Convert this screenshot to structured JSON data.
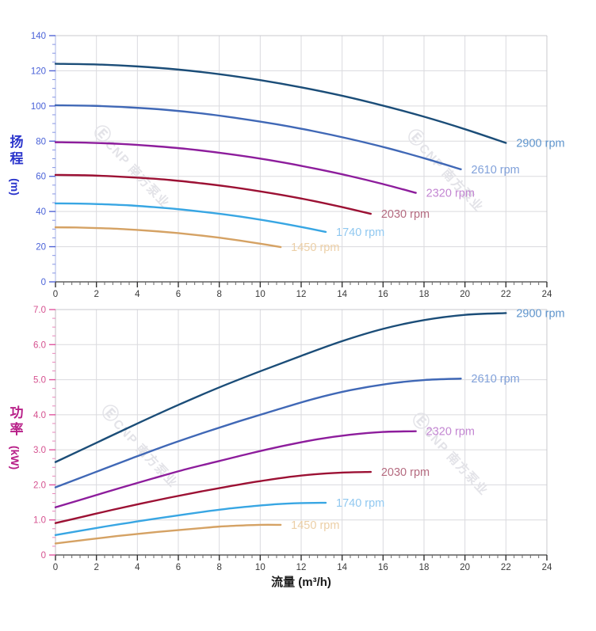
{
  "page": {
    "background": "#ffffff"
  },
  "watermark": {
    "logo": "Ⓔ",
    "text": "CNP 南方泵业",
    "color": "#e3e3e8"
  },
  "chart_data": [
    {
      "type": "line",
      "title": "",
      "ylabel_cjk": "扬程",
      "ylabel_unit": "(m)",
      "ylabel_color": "#2b35cc",
      "xlabel": "",
      "xlim": [
        0,
        24
      ],
      "ylim": [
        0,
        140
      ],
      "x_major": 2,
      "x_minor": 0.4,
      "y_major": 20,
      "y_minor": 5,
      "grid": true,
      "legend_position": "end-of-curve",
      "x_ticks": [
        [
          0,
          "0"
        ],
        [
          2,
          "2"
        ],
        [
          4,
          "4"
        ],
        [
          6,
          "6"
        ],
        [
          8,
          "8"
        ],
        [
          10,
          "10"
        ],
        [
          12,
          "12"
        ],
        [
          14,
          "14"
        ],
        [
          16,
          "16"
        ],
        [
          18,
          "18"
        ],
        [
          20,
          "20"
        ],
        [
          22,
          "22"
        ],
        [
          24,
          "24"
        ]
      ],
      "y_ticks": [
        [
          0,
          "0"
        ],
        [
          20,
          "20"
        ],
        [
          40,
          "40"
        ],
        [
          60,
          "60"
        ],
        [
          80,
          "80"
        ],
        [
          100,
          "100"
        ],
        [
          120,
          "120"
        ],
        [
          140,
          "140"
        ]
      ],
      "x_tick_label_color": "#3a3a3a",
      "y_tick_label_color": "#4a62d8",
      "y_tick_color": "#5265d5",
      "y_minor_tick_color": "#8595e5",
      "series": [
        {
          "name": "2900 rpm",
          "color": "#1b4d78",
          "label_color": "#5e94cc",
          "x": [
            0,
            2,
            4,
            6,
            8,
            10,
            12,
            14,
            16,
            18,
            20,
            22
          ],
          "y": [
            124,
            123.6,
            122.5,
            120.7,
            118.1,
            114.7,
            110.6,
            105.8,
            100.2,
            93.9,
            86.8,
            79
          ]
        },
        {
          "name": "2610 rpm",
          "color": "#4068b6",
          "label_color": "#81a1da",
          "x": [
            0,
            1.8,
            3.6,
            5.4,
            7.2,
            9,
            10.8,
            12.6,
            14.4,
            16.2,
            18,
            19.8
          ],
          "y": [
            100.4,
            100.1,
            99.2,
            97.8,
            95.7,
            92.9,
            89.6,
            85.7,
            81.2,
            76.1,
            70.3,
            64
          ]
        },
        {
          "name": "2320 rpm",
          "color": "#8d1d9c",
          "label_color": "#c386d2",
          "x": [
            0,
            1.6,
            3.2,
            4.8,
            6.4,
            8,
            9.6,
            11.2,
            12.8,
            14.4,
            16,
            17.6
          ],
          "y": [
            79.4,
            79.1,
            78.4,
            77.2,
            75.6,
            73.4,
            70.8,
            67.7,
            64.1,
            60.1,
            55.6,
            50.6
          ]
        },
        {
          "name": "2030 rpm",
          "color": "#9c1134",
          "label_color": "#b56b80",
          "x": [
            0,
            1.4,
            2.8,
            4.2,
            5.6,
            7,
            8.4,
            9.8,
            11.2,
            12.6,
            14,
            15.4
          ],
          "y": [
            60.8,
            60.6,
            60,
            59.1,
            57.9,
            56.2,
            54.2,
            51.8,
            49.1,
            46,
            42.5,
            38.7
          ]
        },
        {
          "name": "1740 rpm",
          "color": "#38a6e3",
          "label_color": "#90c8f0",
          "x": [
            0,
            1.2,
            2.4,
            3.6,
            4.8,
            6,
            7.2,
            8.4,
            9.6,
            10.8,
            12,
            13.2
          ],
          "y": [
            44.6,
            44.5,
            44.1,
            43.5,
            42.5,
            41.3,
            39.8,
            38.1,
            36.1,
            33.8,
            31.2,
            28.4
          ]
        },
        {
          "name": "1450 rpm",
          "color": "#d5a264",
          "label_color": "#eccfa6",
          "x": [
            0,
            1,
            2,
            3,
            4,
            5,
            6,
            7,
            8,
            9,
            10,
            11
          ],
          "y": [
            31,
            30.9,
            30.6,
            30.2,
            29.5,
            28.7,
            27.7,
            26.5,
            25.1,
            23.5,
            21.7,
            19.8
          ]
        }
      ]
    },
    {
      "type": "line",
      "title": "",
      "ylabel_cjk": "功率",
      "ylabel_unit": "(kW)",
      "ylabel_color": "#b81f88",
      "xlabel": "流量 (m³/h)",
      "xlim": [
        0,
        24
      ],
      "ylim": [
        0,
        7
      ],
      "x_major": 2,
      "x_minor": 0.4,
      "y_major": 1,
      "y_minor": 0.25,
      "grid": true,
      "legend_position": "end-of-curve",
      "x_ticks": [
        [
          0,
          "0"
        ],
        [
          2,
          "2"
        ],
        [
          4,
          "4"
        ],
        [
          6,
          "6"
        ],
        [
          8,
          "8"
        ],
        [
          10,
          "10"
        ],
        [
          12,
          "12"
        ],
        [
          14,
          "14"
        ],
        [
          16,
          "16"
        ],
        [
          18,
          "18"
        ],
        [
          20,
          "20"
        ],
        [
          22,
          "22"
        ],
        [
          24,
          "24"
        ]
      ],
      "y_ticks": [
        [
          0,
          "0"
        ],
        [
          1,
          "1.0"
        ],
        [
          2,
          "2.0"
        ],
        [
          3,
          "3.0"
        ],
        [
          4,
          "4.0"
        ],
        [
          5,
          "5.0"
        ],
        [
          6,
          "6.0"
        ],
        [
          7,
          "7.0"
        ]
      ],
      "x_tick_label_color": "#3a3a3a",
      "y_tick_label_color": "#d5518f",
      "y_tick_color": "#e0559f",
      "y_minor_tick_color": "#ea86bb",
      "series": [
        {
          "name": "2900 rpm",
          "color": "#1b4d78",
          "label_color": "#5e94cc",
          "x": [
            0,
            2,
            4,
            6,
            8,
            10,
            12,
            14,
            16,
            18,
            20,
            22
          ],
          "y": [
            2.65,
            3.2,
            3.75,
            4.28,
            4.78,
            5.24,
            5.68,
            6.1,
            6.45,
            6.7,
            6.85,
            6.9
          ]
        },
        {
          "name": "2610 rpm",
          "color": "#4068b6",
          "label_color": "#81a1da",
          "x": [
            0,
            1.8,
            3.6,
            5.4,
            7.2,
            9,
            10.8,
            12.6,
            14.4,
            16.2,
            18,
            19.8
          ],
          "y": [
            1.93,
            2.33,
            2.73,
            3.12,
            3.48,
            3.82,
            4.14,
            4.45,
            4.7,
            4.88,
            4.99,
            5.03
          ]
        },
        {
          "name": "2320 rpm",
          "color": "#8d1d9c",
          "label_color": "#c386d2",
          "x": [
            0,
            1.6,
            3.2,
            4.8,
            6.4,
            8,
            9.6,
            11.2,
            12.8,
            14.4,
            16,
            17.6
          ],
          "y": [
            1.36,
            1.64,
            1.92,
            2.19,
            2.45,
            2.68,
            2.91,
            3.12,
            3.3,
            3.43,
            3.51,
            3.53
          ]
        },
        {
          "name": "2030 rpm",
          "color": "#9c1134",
          "label_color": "#b56b80",
          "x": [
            0,
            1.4,
            2.8,
            4.2,
            5.6,
            7,
            8.4,
            9.8,
            11.2,
            12.6,
            14,
            15.4
          ],
          "y": [
            0.91,
            1.1,
            1.29,
            1.47,
            1.64,
            1.8,
            1.95,
            2.09,
            2.21,
            2.3,
            2.35,
            2.37
          ]
        },
        {
          "name": "1740 rpm",
          "color": "#38a6e3",
          "label_color": "#90c8f0",
          "x": [
            0,
            1.2,
            2.4,
            3.6,
            4.8,
            6,
            7.2,
            8.4,
            9.6,
            10.8,
            12,
            13.2
          ],
          "y": [
            0.57,
            0.69,
            0.81,
            0.92,
            1.03,
            1.13,
            1.23,
            1.32,
            1.39,
            1.45,
            1.48,
            1.49
          ]
        },
        {
          "name": "1450 rpm",
          "color": "#d5a264",
          "label_color": "#eccfa6",
          "x": [
            0,
            1,
            2,
            3,
            4,
            5,
            6,
            7,
            8,
            9,
            10,
            11
          ],
          "y": [
            0.33,
            0.4,
            0.47,
            0.54,
            0.6,
            0.66,
            0.71,
            0.76,
            0.81,
            0.84,
            0.86,
            0.86
          ]
        }
      ]
    }
  ]
}
